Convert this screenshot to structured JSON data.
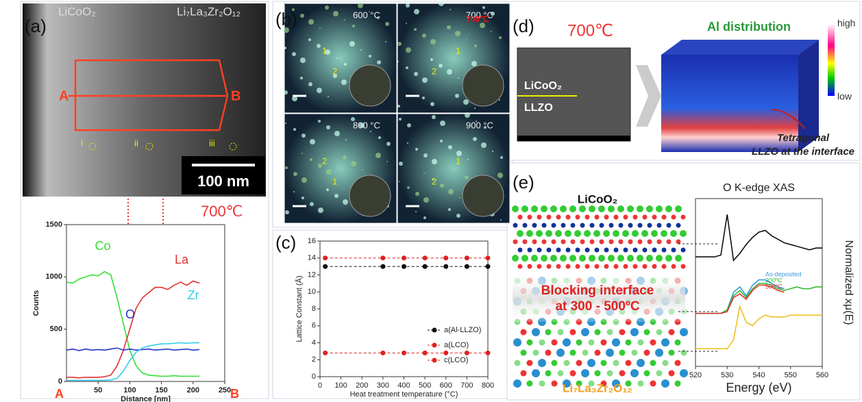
{
  "panels": {
    "a": {
      "label": "(a)",
      "top_left": "LiCoO₂",
      "top_right": "Li₇La₃Zr₂O₁₂",
      "start": "A",
      "end": "B",
      "spots": [
        "i",
        "ii",
        "iii"
      ],
      "scale_bar": "100 nm",
      "temperature": "700℃"
    },
    "b": {
      "label": "(b)",
      "tiles": [
        "600 °C",
        "700 °C",
        "800 °C",
        "900 °C"
      ],
      "overlay": "700℃",
      "marks": [
        "1",
        "2",
        "1",
        "2",
        "2",
        "1",
        "1",
        "2"
      ]
    },
    "c": {
      "label": "(c)"
    },
    "d": {
      "label": "(d)",
      "temperature": "700℃",
      "title": "Al distribution",
      "scale_high": "high",
      "scale_low": "low",
      "layer_top": "LiCoO₂",
      "layer_bottom": "LLZO",
      "callout": [
        "Tetragonal",
        "LLZO at the interface"
      ]
    },
    "e": {
      "label": "(e)",
      "top": "LiCoO₂",
      "interface": [
        "Blocking interface",
        "at 300 - 500ºC"
      ],
      "bottom": "Li₇La₃Zr₂O₁₂"
    }
  },
  "chart_data": [
    {
      "type": "line",
      "xlabel": "Distance [nm]",
      "ylabel": "Counts",
      "x": [
        0,
        10,
        20,
        30,
        40,
        50,
        60,
        70,
        80,
        90,
        100,
        110,
        120,
        130,
        140,
        150,
        160,
        170,
        180,
        190,
        200,
        210
      ],
      "xlim": [
        0,
        250
      ],
      "xticks": [
        50,
        100,
        150,
        200,
        250
      ],
      "ylim": [
        0,
        1500
      ],
      "yticks": [
        0,
        500,
        1000,
        1500
      ],
      "series": [
        {
          "name": "Co",
          "color": "#33dd33",
          "values": [
            950,
            940,
            980,
            1000,
            1020,
            1010,
            1050,
            1020,
            800,
            550,
            300,
            150,
            80,
            60,
            55,
            50,
            50,
            55,
            50,
            50,
            50,
            50
          ]
        },
        {
          "name": "La",
          "color": "#e03030",
          "values": [
            40,
            40,
            35,
            40,
            40,
            40,
            45,
            60,
            150,
            300,
            500,
            700,
            800,
            850,
            900,
            900,
            880,
            920,
            950,
            920,
            960,
            940
          ]
        },
        {
          "name": "O",
          "color": "#2233cc",
          "values": [
            300,
            310,
            295,
            310,
            300,
            305,
            300,
            310,
            320,
            300,
            310,
            300,
            305,
            310,
            300,
            305,
            310,
            300,
            305,
            310,
            300,
            305
          ]
        },
        {
          "name": "Zr",
          "color": "#33ccee",
          "values": [
            10,
            10,
            10,
            10,
            10,
            10,
            10,
            15,
            30,
            100,
            200,
            280,
            320,
            340,
            350,
            360,
            360,
            365,
            370,
            365,
            370,
            370
          ]
        }
      ]
    },
    {
      "type": "line",
      "markers": true,
      "linestyle": "dashed",
      "legend": "right",
      "xlabel": "Heat treatment temperature (°C)",
      "ylabel": "Lattice Constant (Å)",
      "x": [
        25,
        300,
        400,
        500,
        600,
        700,
        800
      ],
      "xlim": [
        0,
        800
      ],
      "xticks": [
        0,
        100,
        200,
        300,
        400,
        500,
        600,
        700,
        800
      ],
      "ylim": [
        0,
        16
      ],
      "yticks": [
        0,
        2,
        4,
        6,
        8,
        10,
        12,
        14,
        16
      ],
      "series": [
        {
          "name": "a(Al-LLZO)",
          "color": "#111111",
          "values": [
            13,
            13,
            13,
            13,
            13,
            13,
            13
          ]
        },
        {
          "name": "a(LCO)",
          "color": "#e02020",
          "values": [
            2.8,
            2.8,
            2.8,
            2.8,
            2.8,
            2.8,
            2.8
          ]
        },
        {
          "name": "c(LCO)",
          "color": "#e02020",
          "values": [
            14,
            14,
            14,
            14,
            14,
            14,
            14
          ]
        }
      ]
    },
    {
      "type": "line",
      "title": "O K-edge XAS",
      "xlabel": "Energy (eV)",
      "ylabel": "Normalized xμ(E)",
      "x": [
        520,
        522,
        524,
        526,
        528,
        530,
        532,
        534,
        536,
        538,
        540,
        542,
        544,
        546,
        548,
        550,
        552,
        554,
        556,
        558,
        560
      ],
      "xlim": [
        520,
        560
      ],
      "xticks": [
        520,
        530,
        540,
        550,
        560
      ],
      "ylim": [
        1,
        10.5
      ],
      "series": [
        {
          "color": "#111111",
          "values": [
            7.2,
            7.2,
            7.2,
            7.2,
            7.3,
            9.6,
            7.0,
            7.4,
            7.9,
            8.3,
            8.6,
            8.7,
            8.4,
            8.2,
            8.0,
            7.9,
            7.8,
            7.7,
            7.6,
            7.7,
            7.7
          ]
        },
        {
          "name": "As-deposited",
          "color": "#3399dd",
          "values": [
            4.0,
            4.0,
            4.0,
            4.0,
            4.0,
            4.2,
            5.2,
            5.5,
            5.0,
            5.6,
            5.9,
            5.9,
            5.7,
            5.5,
            5.4,
            null,
            null,
            null,
            null,
            null,
            null
          ]
        },
        {
          "name": "300ºC",
          "color": "#33bb33",
          "values": [
            4.0,
            4.0,
            4.0,
            4.0,
            4.0,
            4.2,
            5.0,
            5.3,
            4.9,
            5.4,
            5.7,
            5.7,
            5.6,
            5.4,
            5.3,
            5.4,
            5.5,
            5.4,
            5.4,
            5.5,
            5.5
          ]
        },
        {
          "name": "500ºC",
          "color": "#e03030",
          "values": [
            4.0,
            4.0,
            4.0,
            4.0,
            4.0,
            4.1,
            4.9,
            5.1,
            4.8,
            5.3,
            5.6,
            5.6,
            5.5,
            5.3,
            5.2,
            null,
            null,
            null,
            null,
            null,
            null
          ]
        },
        {
          "color": "#f0c020",
          "values": [
            2.0,
            2.0,
            2.0,
            2.0,
            2.0,
            2.0,
            2.5,
            4.4,
            3.5,
            3.3,
            3.7,
            3.9,
            3.8,
            3.8,
            3.8,
            3.9,
            3.9,
            3.9,
            3.9,
            3.9,
            3.9
          ]
        }
      ]
    }
  ]
}
